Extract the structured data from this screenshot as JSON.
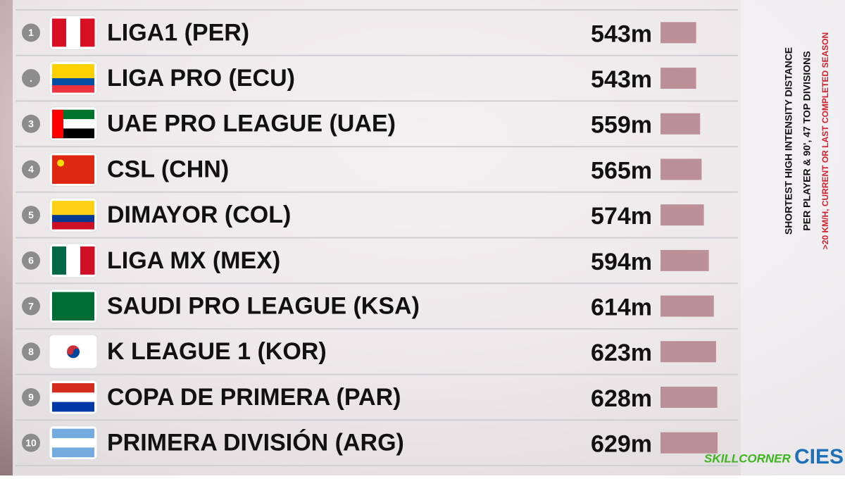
{
  "chart_data": {
    "type": "bar",
    "title": "SHORTEST HIGH INTENSITY DISTANCE",
    "subtitle": "PER PLAYER & 90', 47 TOP DIVISIONS",
    "note": ">20 KM/H, CURRENT OR LAST COMPLETED SEASON",
    "ranks": [
      "1",
      ".",
      "3",
      "4",
      "5",
      "6",
      "7",
      "8",
      "9",
      "10"
    ],
    "categories": [
      "LIGA1 (PER)",
      "LIGA PRO (ECU)",
      "UAE PRO LEAGUE (UAE)",
      "CSL (CHN)",
      "DIMAYOR (COL)",
      "LIGA MX (MEX)",
      "SAUDI PRO LEAGUE (KSA)",
      "K LEAGUE 1 (KOR)",
      "COPA DE PRIMERA (PAR)",
      "PRIMERA DIVISIÓN (ARG)"
    ],
    "values": [
      543,
      543,
      559,
      565,
      574,
      594,
      614,
      623,
      628,
      629
    ],
    "value_labels": [
      "543m",
      "543m",
      "559m",
      "565m",
      "574m",
      "594m",
      "614m",
      "623m",
      "628m",
      "629m"
    ],
    "color": "#b3808a",
    "xlim": [
      400,
      660
    ],
    "logos": [
      "SKILLCORNER",
      "CIES"
    ]
  }
}
